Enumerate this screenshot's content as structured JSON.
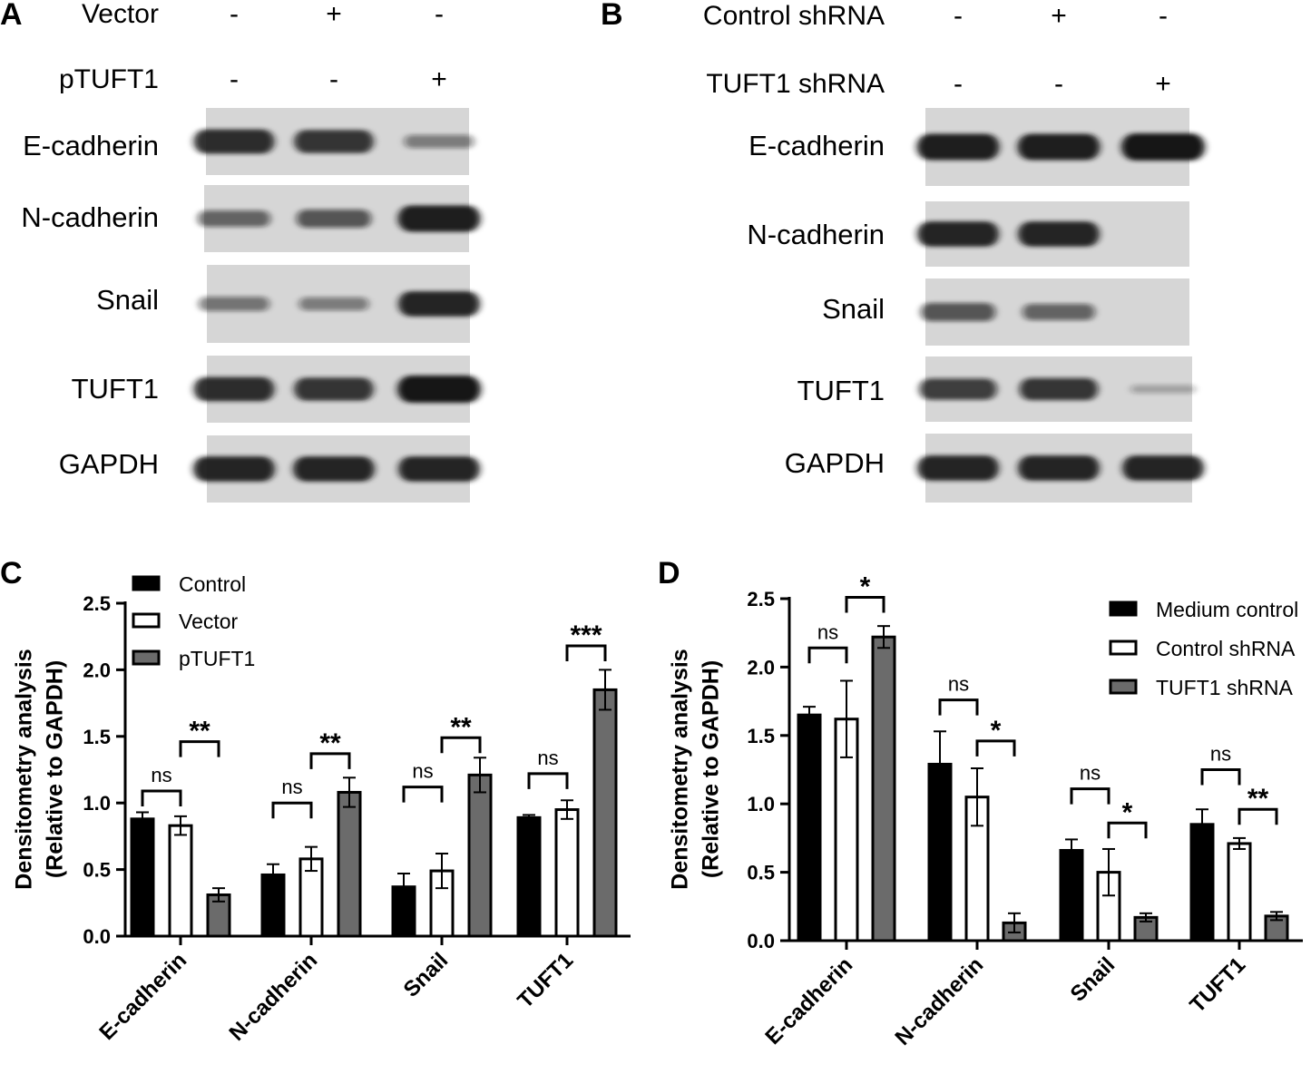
{
  "colors": {
    "black": "#000000",
    "white": "#ffffff",
    "gray": "#6b6b6b",
    "blot_bg": "#d6d6d6",
    "band": "#141414"
  },
  "blots": [
    {
      "panel_label": "A",
      "conditions": [
        {
          "label": "Vector",
          "marks": [
            "-",
            "+",
            "-"
          ]
        },
        {
          "label": "pTUFT1",
          "marks": [
            "-",
            "-",
            "+"
          ]
        }
      ],
      "rows": [
        {
          "label": "E-cadherin",
          "intensity": [
            0.85,
            0.8,
            0.3
          ]
        },
        {
          "label": "N-cadherin",
          "intensity": [
            0.45,
            0.55,
            0.95
          ]
        },
        {
          "label": "Snail",
          "intensity": [
            0.35,
            0.3,
            0.9
          ]
        },
        {
          "label": "TUFT1",
          "intensity": [
            0.85,
            0.8,
            1.0
          ]
        },
        {
          "label": "GAPDH",
          "intensity": [
            0.9,
            0.9,
            0.9
          ]
        }
      ]
    },
    {
      "panel_label": "B",
      "conditions": [
        {
          "label": "Control shRNA",
          "marks": [
            "-",
            "+",
            "-"
          ]
        },
        {
          "label": "TUFT1 shRNA",
          "marks": [
            "-",
            "-",
            "+"
          ]
        }
      ],
      "rows": [
        {
          "label": "E-cadherin",
          "intensity": [
            0.95,
            0.95,
            1.0
          ]
        },
        {
          "label": "N-cadherin",
          "intensity": [
            0.9,
            0.9,
            0.0
          ]
        },
        {
          "label": "Snail",
          "intensity": [
            0.55,
            0.45,
            0.0
          ]
        },
        {
          "label": "TUFT1",
          "intensity": [
            0.7,
            0.75,
            0.05
          ]
        },
        {
          "label": "GAPDH",
          "intensity": [
            0.9,
            0.9,
            0.9
          ]
        }
      ]
    }
  ],
  "chart_data": [
    {
      "panel_label": "C",
      "type": "bar",
      "ylabel_line1": "Densitometry analysis",
      "ylabel_line2": "(Relative to GAPDH)",
      "ylim": [
        0,
        2.5
      ],
      "yticks": [
        "0.0",
        "0.5",
        "1.0",
        "1.5",
        "2.0",
        "2.5"
      ],
      "categories": [
        "E-cadherin",
        "N-cadherin",
        "Snail",
        "TUFT1"
      ],
      "legend_position": "top-left",
      "series": [
        {
          "name": "Control",
          "color": "#000000",
          "values": [
            0.88,
            0.46,
            0.37,
            0.89
          ],
          "errors": [
            0.05,
            0.08,
            0.1,
            0.02
          ]
        },
        {
          "name": "Vector",
          "color": "#ffffff",
          "values": [
            0.83,
            0.58,
            0.49,
            0.95
          ],
          "errors": [
            0.07,
            0.09,
            0.13,
            0.07
          ]
        },
        {
          "name": "pTUFT1",
          "color": "#6b6b6b",
          "values": [
            0.31,
            1.08,
            1.21,
            1.85
          ],
          "errors": [
            0.05,
            0.11,
            0.13,
            0.15
          ]
        }
      ],
      "comparisons": [
        {
          "category": 0,
          "from": 0,
          "to": 1,
          "label": "ns",
          "y": 1.09
        },
        {
          "category": 0,
          "from": 1,
          "to": 2,
          "label": "**",
          "y": 1.46
        },
        {
          "category": 1,
          "from": 0,
          "to": 1,
          "label": "ns",
          "y": 1.0
        },
        {
          "category": 1,
          "from": 1,
          "to": 2,
          "label": "**",
          "y": 1.37
        },
        {
          "category": 2,
          "from": 0,
          "to": 1,
          "label": "ns",
          "y": 1.12
        },
        {
          "category": 2,
          "from": 1,
          "to": 2,
          "label": "**",
          "y": 1.49
        },
        {
          "category": 3,
          "from": 0,
          "to": 1,
          "label": "ns",
          "y": 1.22
        },
        {
          "category": 3,
          "from": 1,
          "to": 2,
          "label": "***",
          "y": 2.18
        }
      ]
    },
    {
      "panel_label": "D",
      "type": "bar",
      "ylabel_line1": "Densitometry analysis",
      "ylabel_line2": "(Relative to GAPDH)",
      "ylim": [
        0,
        2.5
      ],
      "yticks": [
        "0.0",
        "0.5",
        "1.0",
        "1.5",
        "2.0",
        "2.5"
      ],
      "categories": [
        "E-cadherin",
        "N-cadherin",
        "Snail",
        "TUFT1"
      ],
      "legend_position": "top-right",
      "series": [
        {
          "name": "Medium control",
          "color": "#000000",
          "values": [
            1.65,
            1.29,
            0.66,
            0.85
          ],
          "errors": [
            0.06,
            0.24,
            0.08,
            0.11
          ]
        },
        {
          "name": "Control shRNA",
          "color": "#ffffff",
          "values": [
            1.62,
            1.05,
            0.5,
            0.71
          ],
          "errors": [
            0.28,
            0.21,
            0.17,
            0.04
          ]
        },
        {
          "name": "TUFT1 shRNA",
          "color": "#6b6b6b",
          "values": [
            2.22,
            0.13,
            0.17,
            0.18
          ],
          "errors": [
            0.08,
            0.07,
            0.03,
            0.03
          ]
        }
      ],
      "comparisons": [
        {
          "category": 0,
          "from": 0,
          "to": 1,
          "label": "ns",
          "y": 2.14
        },
        {
          "category": 0,
          "from": 1,
          "to": 2,
          "label": "*",
          "y": 2.51
        },
        {
          "category": 1,
          "from": 0,
          "to": 1,
          "label": "ns",
          "y": 1.76
        },
        {
          "category": 1,
          "from": 1,
          "to": 2,
          "label": "*",
          "y": 1.46
        },
        {
          "category": 2,
          "from": 0,
          "to": 1,
          "label": "ns",
          "y": 1.11
        },
        {
          "category": 2,
          "from": 1,
          "to": 2,
          "label": "*",
          "y": 0.86
        },
        {
          "category": 3,
          "from": 0,
          "to": 1,
          "label": "ns",
          "y": 1.25
        },
        {
          "category": 3,
          "from": 1,
          "to": 2,
          "label": "**",
          "y": 0.96
        }
      ]
    }
  ]
}
